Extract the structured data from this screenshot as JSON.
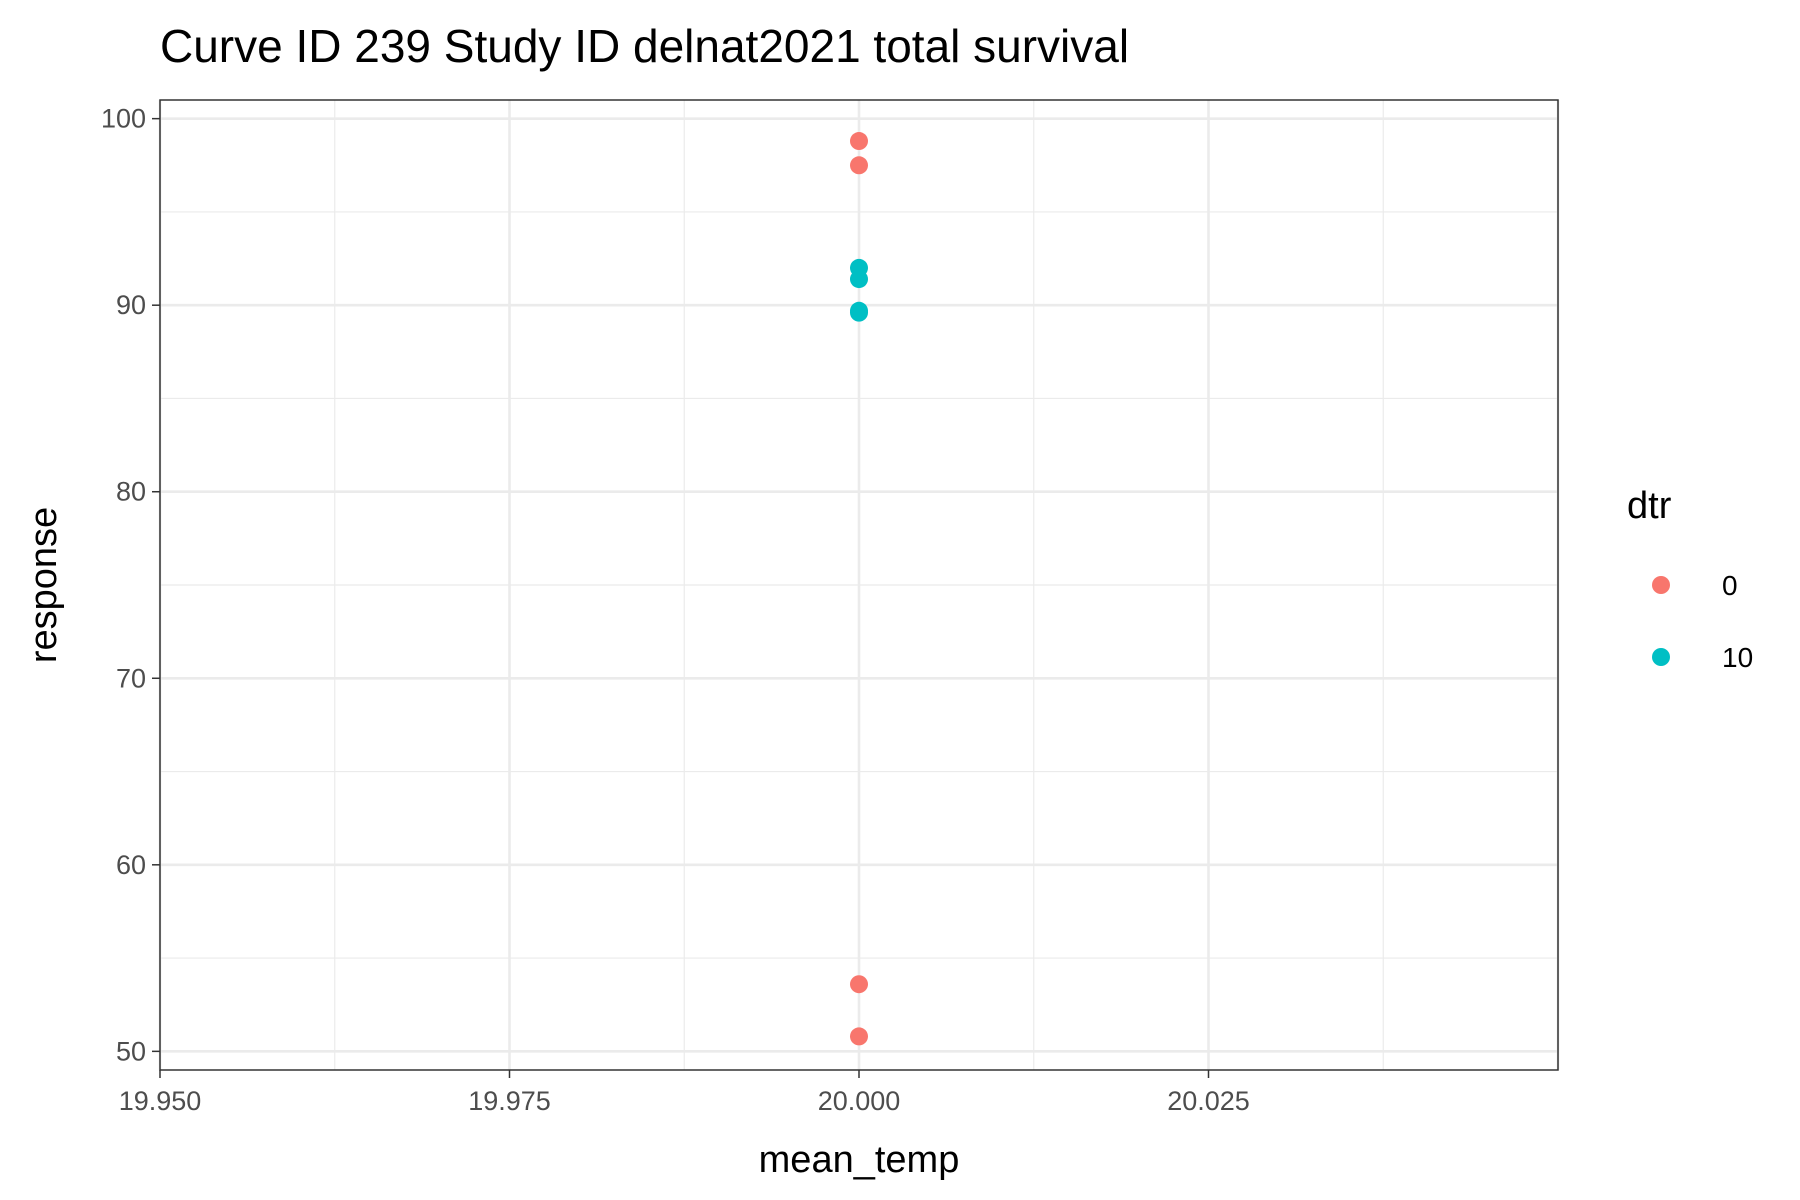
{
  "chart_data": {
    "type": "scatter",
    "title": "Curve ID 239 Study ID delnat2021 total survival",
    "xlabel": "mean_temp",
    "ylabel": "response",
    "xlim": [
      19.95,
      20.05
    ],
    "ylim": [
      49,
      101
    ],
    "xticks": [
      "19.950",
      "19.975",
      "20.000",
      "20.025"
    ],
    "xtick_values": [
      19.95,
      19.975,
      20.0,
      20.025
    ],
    "yticks": [
      "50",
      "60",
      "70",
      "80",
      "90",
      "100"
    ],
    "ytick_values": [
      50,
      60,
      70,
      80,
      90,
      100
    ],
    "grid": true,
    "legend": {
      "title": "dtr",
      "position": "right"
    },
    "series": [
      {
        "name": "0",
        "color": "#F8766D",
        "points": [
          {
            "x": 20.0,
            "y": 98.8
          },
          {
            "x": 20.0,
            "y": 97.5
          },
          {
            "x": 20.0,
            "y": 53.6
          },
          {
            "x": 20.0,
            "y": 50.8
          }
        ]
      },
      {
        "name": "10",
        "color": "#00BFC4",
        "points": [
          {
            "x": 20.0,
            "y": 92.0
          },
          {
            "x": 20.0,
            "y": 91.4
          },
          {
            "x": 20.0,
            "y": 89.7
          },
          {
            "x": 20.0,
            "y": 89.6
          }
        ]
      }
    ]
  }
}
